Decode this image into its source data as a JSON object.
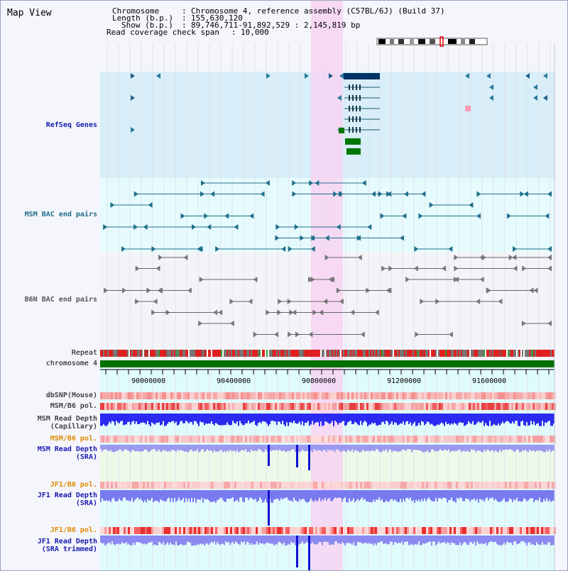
{
  "title": "Map View",
  "info": {
    "chromosome_key": "Chromosome",
    "chromosome_val": "Chromosome 4, reference assembly (C57BL/6J) (Build 37)",
    "length_key": "Length (b.p.)",
    "length_val": "155,630,120",
    "show_key": "Show (b.p.)",
    "show_val": "89,746,711-91,892,529 : 2,145,819 bp",
    "coverage_key": "Read coverage check span",
    "coverage_val": "10,000"
  },
  "tracks": {
    "refseq": "RefSeq Genes",
    "msm_bac": "MSM BAC end pairs",
    "b6n_bac": "B6N BAC end pairs",
    "repeat": "Repeat",
    "chromosome": "chromosome 4",
    "dbsnp": "dbSNP(Mouse)",
    "msm_b6_pol_1": "MSM/B6 pol.",
    "msm_depth_cap": "MSM Read Depth",
    "msm_depth_cap_sub": "(Capillary)",
    "msm_b6_pol_2": "MSM/B6 pol.",
    "msm_depth_sra": "MSM Read Depth",
    "msm_depth_sra_sub": "(SRA)",
    "jf1_b6_pol_1": "JF1/B6 pol.",
    "jf1_depth_sra": "JF1 Read Depth",
    "jf1_depth_sra_sub": "(SRA)",
    "jf1_b6_pol_2": "JF1/B6 pol.",
    "jf1_depth_trim": "JF1 Read Depth",
    "jf1_depth_trim_sub": "(SRA trimmed)"
  },
  "axis_ticks": [
    "90000000",
    "90400000",
    "90800000",
    "91200000",
    "91600000"
  ],
  "colors": {
    "refseq_label": "#1a1ab0",
    "msm_label": "#1f6f8b",
    "b6n_label": "#555555",
    "pol_label": "#e08a00",
    "depth_label": "#1a1ab0",
    "highlight": "#f7d4f2",
    "chromosome_bar": "#007000"
  }
}
